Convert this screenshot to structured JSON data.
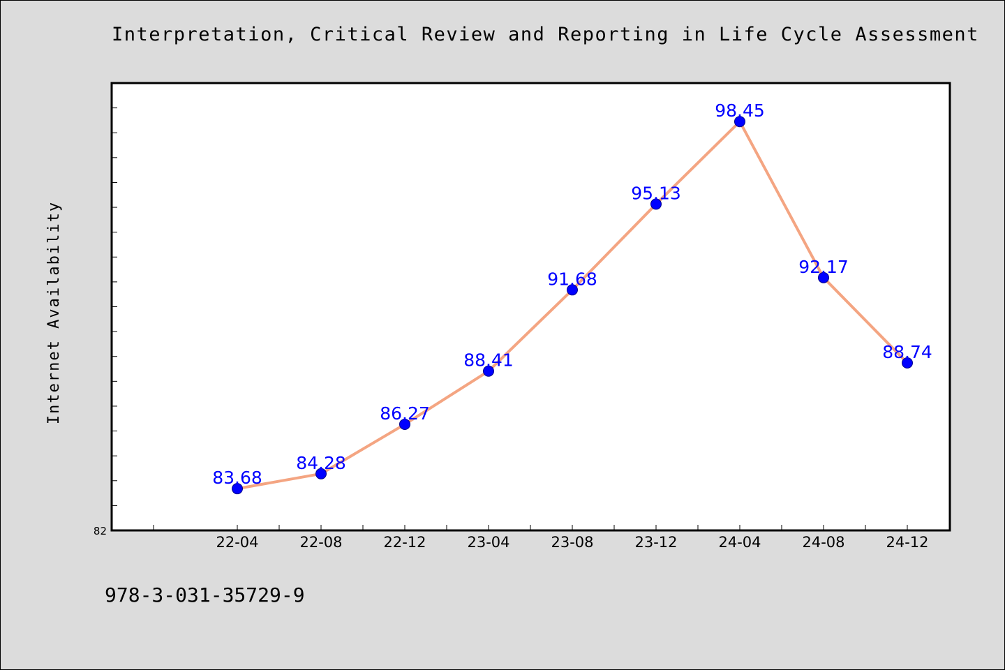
{
  "chart_data": {
    "type": "line",
    "title": "Interpretation, Critical Review and Reporting in Life Cycle Assessment",
    "ylabel": "Internet Availability",
    "xlabel": "",
    "categories": [
      "22-04",
      "22-08",
      "22-12",
      "23-04",
      "23-08",
      "23-12",
      "24-04",
      "24-08",
      "24-12"
    ],
    "series": [
      {
        "values": [
          83.68,
          84.28,
          86.27,
          88.41,
          91.68,
          95.13,
          98.45,
          92.17,
          88.74
        ]
      }
    ],
    "ylim": [
      82,
      100
    ],
    "y_tick_labels": [
      "82"
    ],
    "line_color": "#f4a582",
    "marker_color": "#0000ff",
    "label_color": "#0000ff",
    "grid": false,
    "legend": "none"
  },
  "footer": {
    "isbn": "978-3-031-35729-9"
  }
}
